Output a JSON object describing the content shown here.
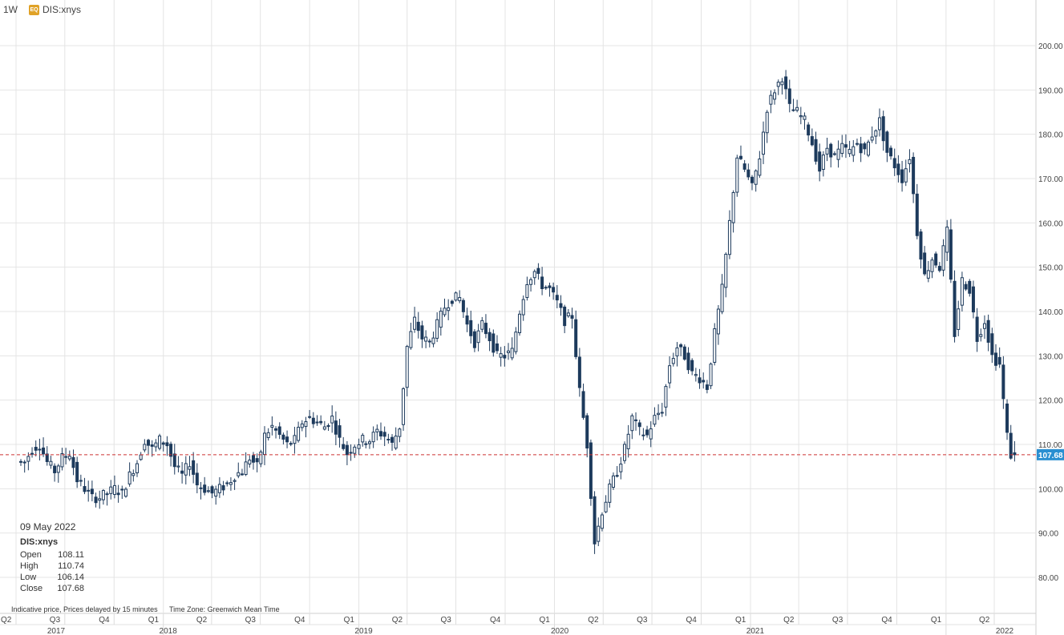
{
  "header": {
    "interval": "1W",
    "badge": "EQ",
    "symbol": "DIS:xnys"
  },
  "infobox": {
    "date": "09 May 2022",
    "symbol": "DIS:xnys",
    "open_label": "Open",
    "open": "108.11",
    "high_label": "High",
    "high": "110.74",
    "low_label": "Low",
    "low": "106.14",
    "close_label": "Close",
    "close": "107.68"
  },
  "footnote": {
    "delay": "Indicative price, Prices delayed by 15 minutes",
    "timezone": "Time Zone: Greenwich Mean Time"
  },
  "colors": {
    "candle": "#1d3a5c",
    "grid": "#e4e4e4",
    "last_price_line": "#cc3333",
    "last_price_tag": "#2a8fd1"
  },
  "chart_data": {
    "type": "candlestick",
    "interval": "1W",
    "last_price": 107.68,
    "ylim": [
      75,
      205
    ],
    "y_ticks": [
      80,
      90,
      100,
      110,
      120,
      130,
      140,
      150,
      160,
      170,
      180,
      190,
      200
    ],
    "y_tick_labels": [
      "80.00",
      "90.00",
      "100.00",
      "110.00",
      "120.00",
      "130.00",
      "140.00",
      "150.00",
      "160.00",
      "170.00",
      "180.00",
      "190.00",
      "200.00"
    ],
    "x_quarters": [
      "Q2",
      "Q3",
      "Q4",
      "Q1",
      "Q2",
      "Q3",
      "Q4",
      "Q1",
      "Q2",
      "Q3",
      "Q4",
      "Q1",
      "Q2",
      "Q3",
      "Q4",
      "Q1",
      "Q2",
      "Q3",
      "Q4",
      "Q1",
      "Q2"
    ],
    "x_years": [
      "2017",
      "2018",
      "2019",
      "2020",
      "2021",
      "2022"
    ],
    "anchors": [
      [
        "2017-04-10",
        106
      ],
      [
        "2017-04-24",
        106
      ],
      [
        "2017-05-08",
        109
      ],
      [
        "2017-05-22",
        110
      ],
      [
        "2017-06-05",
        106
      ],
      [
        "2017-06-19",
        104
      ],
      [
        "2017-07-03",
        107
      ],
      [
        "2017-07-17",
        108
      ],
      [
        "2017-07-31",
        102
      ],
      [
        "2017-08-14",
        100
      ],
      [
        "2017-08-28",
        98
      ],
      [
        "2017-09-11",
        98
      ],
      [
        "2017-09-25",
        99
      ],
      [
        "2017-10-09",
        100
      ],
      [
        "2017-10-23",
        99
      ],
      [
        "2017-11-06",
        103
      ],
      [
        "2017-11-20",
        106
      ],
      [
        "2017-12-04",
        111
      ],
      [
        "2017-12-18",
        109
      ],
      [
        "2018-01-01",
        111
      ],
      [
        "2018-01-15",
        110
      ],
      [
        "2018-01-29",
        105
      ],
      [
        "2018-02-12",
        103
      ],
      [
        "2018-02-26",
        106
      ],
      [
        "2018-03-12",
        101
      ],
      [
        "2018-03-26",
        100
      ],
      [
        "2018-04-09",
        99
      ],
      [
        "2018-04-23",
        100
      ],
      [
        "2018-05-07",
        101
      ],
      [
        "2018-05-21",
        103
      ],
      [
        "2018-06-04",
        104
      ],
      [
        "2018-06-18",
        107
      ],
      [
        "2018-07-02",
        105
      ],
      [
        "2018-07-16",
        112
      ],
      [
        "2018-07-30",
        114
      ],
      [
        "2018-08-13",
        112
      ],
      [
        "2018-08-27",
        110
      ],
      [
        "2018-09-10",
        111
      ],
      [
        "2018-09-24",
        115
      ],
      [
        "2018-10-08",
        116
      ],
      [
        "2018-10-22",
        115
      ],
      [
        "2018-11-05",
        114
      ],
      [
        "2018-11-19",
        116
      ],
      [
        "2018-12-03",
        111
      ],
      [
        "2018-12-17",
        108
      ],
      [
        "2019-01-01",
        110
      ],
      [
        "2019-01-14",
        111
      ],
      [
        "2019-01-28",
        111
      ],
      [
        "2019-02-11",
        113
      ],
      [
        "2019-02-25",
        112
      ],
      [
        "2019-03-11",
        110
      ],
      [
        "2019-03-25",
        114
      ],
      [
        "2019-04-08",
        132
      ],
      [
        "2019-04-22",
        138
      ],
      [
        "2019-05-06",
        134
      ],
      [
        "2019-05-20",
        133
      ],
      [
        "2019-06-03",
        137
      ],
      [
        "2019-06-17",
        141
      ],
      [
        "2019-07-01",
        143
      ],
      [
        "2019-07-15",
        143
      ],
      [
        "2019-07-29",
        137
      ],
      [
        "2019-08-12",
        133
      ],
      [
        "2019-08-26",
        137
      ],
      [
        "2019-09-09",
        134
      ],
      [
        "2019-09-23",
        130
      ],
      [
        "2019-10-07",
        130
      ],
      [
        "2019-10-21",
        131
      ],
      [
        "2019-11-04",
        140
      ],
      [
        "2019-11-18",
        147
      ],
      [
        "2019-12-02",
        149
      ],
      [
        "2019-12-16",
        146
      ],
      [
        "2019-12-30",
        145
      ],
      [
        "2020-01-13",
        142
      ],
      [
        "2020-01-27",
        138
      ],
      [
        "2020-02-10",
        139
      ],
      [
        "2020-02-24",
        122
      ],
      [
        "2020-03-09",
        110
      ],
      [
        "2020-03-23",
        88
      ],
      [
        "2020-04-06",
        95
      ],
      [
        "2020-04-20",
        100
      ],
      [
        "2020-05-04",
        104
      ],
      [
        "2020-05-18",
        109
      ],
      [
        "2020-06-01",
        116
      ],
      [
        "2020-06-15",
        113
      ],
      [
        "2020-06-29",
        112
      ],
      [
        "2020-07-13",
        116
      ],
      [
        "2020-07-27",
        118
      ],
      [
        "2020-08-10",
        128
      ],
      [
        "2020-08-24",
        132
      ],
      [
        "2020-09-07",
        130
      ],
      [
        "2020-09-21",
        126
      ],
      [
        "2020-10-05",
        125
      ],
      [
        "2020-10-19",
        123
      ],
      [
        "2020-11-02",
        135
      ],
      [
        "2020-11-16",
        145
      ],
      [
        "2020-11-30",
        160
      ],
      [
        "2020-12-14",
        175
      ],
      [
        "2020-12-28",
        172
      ],
      [
        "2021-01-11",
        168
      ],
      [
        "2021-01-25",
        175
      ],
      [
        "2021-02-08",
        186
      ],
      [
        "2021-02-22",
        190
      ],
      [
        "2021-03-08",
        193
      ],
      [
        "2021-03-22",
        186
      ],
      [
        "2021-04-05",
        185
      ],
      [
        "2021-04-19",
        183
      ],
      [
        "2021-05-03",
        178
      ],
      [
        "2021-05-17",
        172
      ],
      [
        "2021-05-31",
        177
      ],
      [
        "2021-06-14",
        175
      ],
      [
        "2021-06-28",
        177
      ],
      [
        "2021-07-12",
        176
      ],
      [
        "2021-07-26",
        178
      ],
      [
        "2021-08-09",
        176
      ],
      [
        "2021-08-23",
        180
      ],
      [
        "2021-09-06",
        183
      ],
      [
        "2021-09-20",
        176
      ],
      [
        "2021-10-04",
        173
      ],
      [
        "2021-10-18",
        170
      ],
      [
        "2021-11-01",
        175
      ],
      [
        "2021-11-15",
        158
      ],
      [
        "2021-11-29",
        148
      ],
      [
        "2021-12-13",
        152
      ],
      [
        "2021-12-27",
        150
      ],
      [
        "2022-01-10",
        158
      ],
      [
        "2022-01-24",
        135
      ],
      [
        "2022-02-07",
        147
      ],
      [
        "2022-02-21",
        145
      ],
      [
        "2022-03-07",
        134
      ],
      [
        "2022-03-21",
        138
      ],
      [
        "2022-04-04",
        130
      ],
      [
        "2022-04-18",
        128
      ],
      [
        "2022-05-02",
        112
      ],
      [
        "2022-05-09",
        107.68
      ]
    ]
  }
}
